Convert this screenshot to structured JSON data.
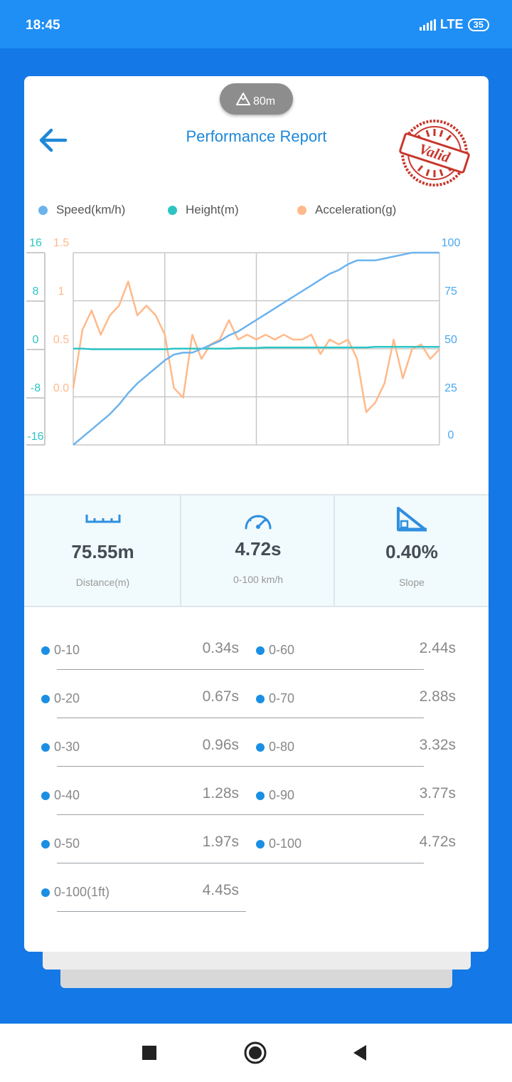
{
  "status": {
    "time": "18:45",
    "network": "LTE",
    "battery": "35"
  },
  "header": {
    "altitude": "80m",
    "title": "Performance Report",
    "stamp_text": "Valid"
  },
  "legend": [
    {
      "label": "Speed(km/h)",
      "color": "#6cb3ee"
    },
    {
      "label": "Height(m)",
      "color": "#2ec4c4"
    },
    {
      "label": "Acceleration(g)",
      "color": "#ffb98a"
    }
  ],
  "chart_data": {
    "type": "line",
    "x": [
      0,
      1,
      2,
      3,
      4,
      5,
      6,
      7,
      8,
      9,
      10,
      11,
      12,
      13,
      14,
      15,
      16,
      17,
      18,
      19,
      20,
      21,
      22,
      23,
      24,
      25,
      26,
      27,
      28,
      29,
      30,
      31,
      32,
      33,
      34,
      35,
      36,
      37,
      38,
      39,
      40
    ],
    "series": [
      {
        "name": "Speed(km/h)",
        "axis": "right",
        "color": "#6cb3ee",
        "values": [
          0,
          4,
          8,
          12,
          16,
          21,
          27,
          32,
          36,
          40,
          44,
          47,
          48,
          48,
          50,
          52,
          54,
          57,
          59,
          62,
          65,
          68,
          71,
          74,
          77,
          80,
          83,
          86,
          89,
          91,
          94,
          96,
          96,
          96,
          97,
          98,
          99,
          100,
          100,
          100,
          100
        ]
      },
      {
        "name": "Height(m)",
        "axis": "left_height",
        "color": "#2ec4c4",
        "values": [
          -1.5,
          -1.5,
          -1.6,
          -1.6,
          -1.6,
          -1.6,
          -1.6,
          -1.6,
          -1.6,
          -1.6,
          -1.6,
          -1.5,
          -1.5,
          -1.5,
          -1.5,
          -1.5,
          -1.5,
          -1.5,
          -1.4,
          -1.4,
          -1.4,
          -1.3,
          -1.3,
          -1.3,
          -1.3,
          -1.3,
          -1.3,
          -1.3,
          -1.3,
          -1.3,
          -1.3,
          -1.3,
          -1.3,
          -1.2,
          -1.2,
          -1.2,
          -1.2,
          -1.2,
          -1.2,
          -1.2,
          -1.2
        ]
      },
      {
        "name": "Acceleration(g)",
        "axis": "left_accel",
        "color": "#ffb98a",
        "values": [
          0.0,
          0.6,
          0.8,
          0.55,
          0.75,
          0.85,
          1.1,
          0.75,
          0.85,
          0.75,
          0.55,
          0.0,
          -0.1,
          0.55,
          0.3,
          0.45,
          0.5,
          0.7,
          0.5,
          0.55,
          0.5,
          0.55,
          0.5,
          0.55,
          0.5,
          0.5,
          0.55,
          0.35,
          0.5,
          0.45,
          0.5,
          0.3,
          -0.25,
          -0.15,
          0.05,
          0.5,
          0.1,
          0.4,
          0.45,
          0.3,
          0.4
        ]
      }
    ],
    "y_left_height": {
      "ticks": [
        "16",
        "8",
        "0",
        "-8",
        "-16"
      ],
      "range": [
        -16,
        16
      ],
      "color": "#2ec4c4"
    },
    "y_left_accel": {
      "ticks": [
        "1.5",
        "1",
        "0.5",
        "0.0"
      ],
      "range": [
        -0.5,
        1.5
      ],
      "color": "#ffb98a"
    },
    "y_right": {
      "ticks": [
        "100",
        "75",
        "50",
        "25",
        "0"
      ],
      "range": [
        0,
        100
      ],
      "color": "#4aa8ef"
    },
    "grid": true,
    "legend_position": "top"
  },
  "stats": [
    {
      "icon": "ruler-icon",
      "value": "75.55m",
      "label": "Distance(m)"
    },
    {
      "icon": "speedometer-icon",
      "value": "4.72s",
      "label": "0-100 km/h"
    },
    {
      "icon": "slope-icon",
      "value": "0.40%",
      "label": "Slope"
    }
  ],
  "splits_left": [
    {
      "label": "0-10",
      "value": "0.34s"
    },
    {
      "label": "0-20",
      "value": "0.67s"
    },
    {
      "label": "0-30",
      "value": "0.96s"
    },
    {
      "label": "0-40",
      "value": "1.28s"
    },
    {
      "label": "0-50",
      "value": "1.97s"
    },
    {
      "label": "0-100(1ft)",
      "value": "4.45s"
    }
  ],
  "splits_right": [
    {
      "label": "0-60",
      "value": "2.44s"
    },
    {
      "label": "0-70",
      "value": "2.88s"
    },
    {
      "label": "0-80",
      "value": "3.32s"
    },
    {
      "label": "0-90",
      "value": "3.77s"
    },
    {
      "label": "0-100",
      "value": "4.72s"
    }
  ],
  "nav": {
    "recents": "square-icon",
    "home": "circle-icon",
    "back": "triangle-back-icon"
  }
}
